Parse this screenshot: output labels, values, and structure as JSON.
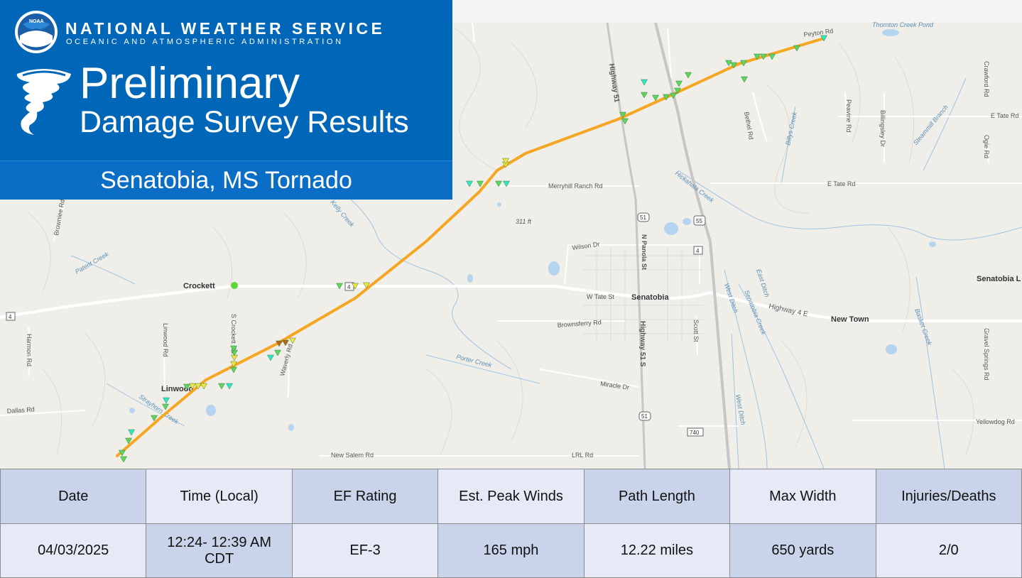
{
  "header": {
    "org_name": "NATIONAL WEATHER SERVICE",
    "org_subtitle": "OCEANIC AND ATMOSPHERIC ADMINISTRATION",
    "logo_text": "NOAA",
    "headline_line1": "Preliminary",
    "headline_line2": "Damage Survey Results",
    "event_title": "Senatobia, MS Tornado"
  },
  "map": {
    "places": {
      "senatobia": "Senatobia",
      "crockett": "Crockett",
      "linwood": "Linwood",
      "new_town": "New Town",
      "senatobia_l": "Senatobia L",
      "thornton_pond": "Thornton Creek Pond"
    },
    "roads": {
      "highway_51": "Highway 51",
      "highway_51_s": "Highway 51 S",
      "n_panola_st": "N Panola St",
      "highway_4_e": "Highway 4 E",
      "w_tate_st": "W Tate St",
      "e_tate_rd": "E Tate Rd",
      "e_tate_rd_2": "E Tate Rd",
      "wilson_dr": "Wilson Dr",
      "brownsferry_rd": "Brownsferry Rd",
      "merryhill_ranch_rd": "Merryhill Ranch Rd",
      "miracle_dr": "Miracle Dr",
      "new_salem_rd": "New Salem Rd",
      "lrl_rd": "LRL Rd",
      "dallas_rd": "Dallas Rd",
      "harmon_rd": "Harmon Rd",
      "linwood_rd": "Linwood Rd",
      "s_crockett_rd": "S Crockett Rd",
      "waverly_rd": "Waverly Rd",
      "bethel_rd": "Bethel Rd",
      "peavine_rd": "Peavine Rd",
      "billingsley_dr": "Billingsley Dr",
      "crawford_rd": "Crawford Rd",
      "ogle_rd": "Ogle Rd",
      "gravel_springs_rd": "Gravel Springs Rd",
      "yellowdog_rd": "Yellowdog Rd",
      "peyton_rd": "Peyton Rd",
      "scott_st": "Scott St",
      "browniee_rd": "Browniee Rd"
    },
    "waterways": {
      "hickahala_creek": "Hickahala Creek",
      "billys_creek": "Billys Creek",
      "steammill_branch": "Steammill Branch",
      "porter_creek": "Porter Creek",
      "patent_creek": "Patent Creek",
      "east_ditch": "East Ditch",
      "west_ditch": "West Ditch",
      "senatobia_creek": "Senatobia Creek",
      "basket_creek": "Basket Creek",
      "strayhorn_creek": "Strayhorn Creek",
      "kelly_creek": "Kelly Creek"
    },
    "elevation": "311 ft",
    "shields": {
      "hwy4": "4",
      "hwy51": "51",
      "i55": "55",
      "r740": "740"
    },
    "colors": {
      "track": "#f5a623",
      "ef0": "#2ee8c8",
      "ef1": "#5cd65c",
      "ef2": "#f0e442",
      "ef3": "#b5651d"
    }
  },
  "summary": {
    "headers": [
      "Date",
      "Time (Local)",
      "EF Rating",
      "Est. Peak Winds",
      "Path Length",
      "Max Width",
      "Injuries/Deaths"
    ],
    "values": [
      "04/03/2025",
      "12:24- 12:39 AM CDT",
      "EF-3",
      "165 mph",
      "12.22 miles",
      "650 yards",
      "2/0"
    ]
  }
}
